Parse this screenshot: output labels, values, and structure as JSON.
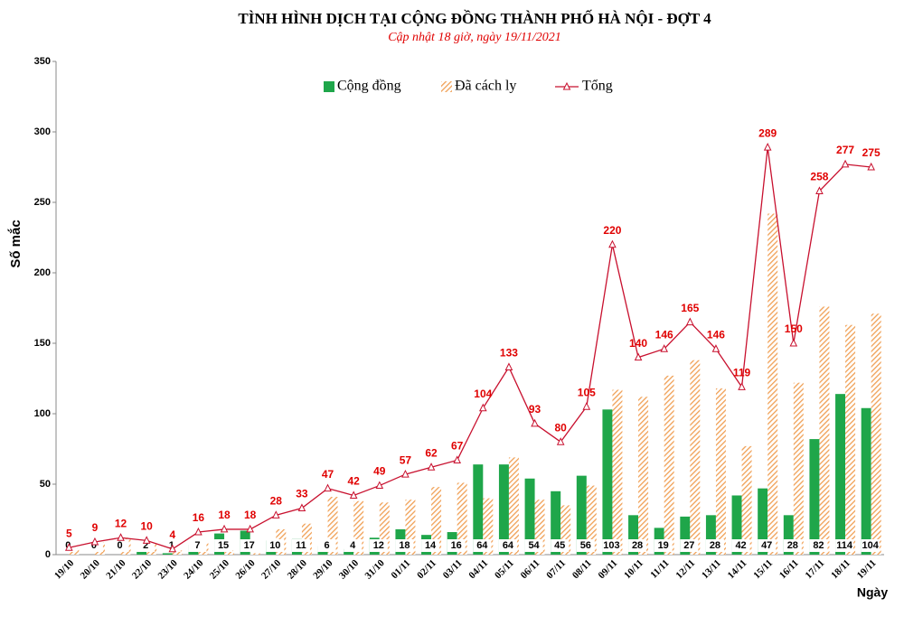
{
  "chart_data": {
    "type": "bar-line",
    "title": "TÌNH HÌNH DỊCH TẠI CỘNG ĐỒNG THÀNH PHỐ HÀ NỘI - ĐỢT 4",
    "subtitle": "Cập nhật 18 giờ, ngày 19/11/2021",
    "y_label": "Số mắc",
    "x_label": "Ngày",
    "categories": [
      "19/10",
      "20/10",
      "21/10",
      "22/10",
      "23/10",
      "24/10",
      "25/10",
      "26/10",
      "27/10",
      "28/10",
      "29/10",
      "30/10",
      "31/10",
      "01/11",
      "02/11",
      "03/11",
      "04/11",
      "05/11",
      "06/11",
      "07/11",
      "08/11",
      "09/11",
      "10/11",
      "11/11",
      "12/11",
      "13/11",
      "14/11",
      "15/11",
      "16/11",
      "17/11",
      "18/11",
      "19/11"
    ],
    "series": [
      {
        "name": "Cộng đồng",
        "color": "#1fa64a",
        "type": "bar",
        "labels": true,
        "values": [
          0,
          0,
          0,
          2,
          1,
          7,
          15,
          17,
          10,
          11,
          6,
          4,
          12,
          18,
          14,
          16,
          64,
          64,
          54,
          45,
          56,
          103,
          28,
          19,
          27,
          28,
          42,
          47,
          28,
          82,
          114,
          104
        ]
      },
      {
        "name": "Đã cách ly",
        "color": "#f0a055",
        "type": "hatched-bar",
        "values": [
          5,
          9,
          12,
          8,
          3,
          9,
          3,
          1,
          18,
          22,
          41,
          38,
          37,
          39,
          48,
          51,
          40,
          69,
          39,
          35,
          49,
          117,
          112,
          127,
          138,
          118,
          77,
          242,
          122,
          176,
          163,
          171
        ]
      },
      {
        "name": "Tổng",
        "color": "#c8102e",
        "type": "line",
        "labels": true,
        "values": [
          5,
          9,
          12,
          10,
          4,
          16,
          18,
          18,
          28,
          33,
          47,
          42,
          49,
          57,
          62,
          67,
          104,
          133,
          93,
          80,
          105,
          220,
          140,
          146,
          165,
          146,
          119,
          289,
          150,
          258,
          277,
          275
        ]
      }
    ],
    "ylim": [
      0,
      350
    ],
    "yticks": [
      0,
      50,
      100,
      150,
      200,
      250,
      300,
      350
    ],
    "grid": false,
    "legend": "top"
  }
}
